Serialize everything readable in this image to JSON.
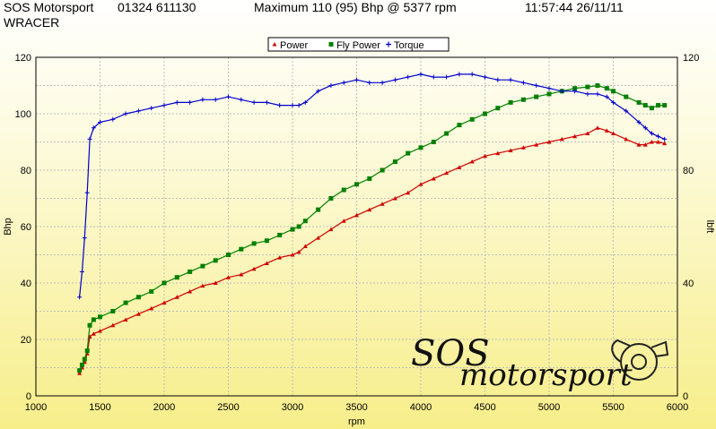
{
  "header": {
    "company": "SOS Motorsport",
    "phone": "01324 611130",
    "maximum": "Maximum 110 (95) Bhp @ 5377 rpm",
    "timestamp": "11:57:44 26/11/11",
    "vehicle": "WRACER"
  },
  "logo": {
    "line1": "SOS",
    "line2": "motorsport"
  },
  "colors": {
    "power": "#d00000",
    "fly_power": "#008000",
    "torque": "#0000cc"
  },
  "chart_data": {
    "type": "line",
    "xlabel": "rpm",
    "ylabel": "Bhp",
    "y2label": "lbft",
    "xlim": [
      1000,
      6000
    ],
    "ylim": [
      0,
      120
    ],
    "y2lim": [
      0,
      120
    ],
    "grid": true,
    "legend_position": "top-center",
    "x_ticks": [
      "1000",
      "1500",
      "2000",
      "2500",
      "3000",
      "3500",
      "4000",
      "4500",
      "5000",
      "5500",
      "6000"
    ],
    "y_ticks": [
      "0",
      "20",
      "40",
      "60",
      "80",
      "100",
      "120"
    ],
    "y2_ticks": [
      "0",
      "40",
      "80",
      "120"
    ],
    "series": [
      {
        "name": "Power",
        "marker": "^",
        "axis": "left",
        "x": [
          1340,
          1360,
          1380,
          1400,
          1420,
          1450,
          1500,
          1600,
          1700,
          1800,
          1900,
          2000,
          2100,
          2200,
          2300,
          2400,
          2500,
          2600,
          2700,
          2800,
          2900,
          3000,
          3050,
          3100,
          3200,
          3300,
          3400,
          3500,
          3600,
          3700,
          3800,
          3900,
          4000,
          4100,
          4200,
          4300,
          4400,
          4500,
          4600,
          4700,
          4800,
          4900,
          5000,
          5100,
          5200,
          5300,
          5377,
          5450,
          5500,
          5600,
          5700,
          5750,
          5800,
          5850,
          5900
        ],
        "y": [
          8,
          10,
          12,
          15,
          21,
          22,
          23,
          25,
          27,
          29,
          31,
          33,
          35,
          37,
          39,
          40,
          42,
          43,
          45,
          47,
          49,
          50,
          51,
          53,
          56,
          59,
          62,
          64,
          66,
          68,
          70,
          72,
          75,
          77,
          79,
          81,
          83,
          85,
          86,
          87,
          88,
          89,
          90,
          91,
          92,
          93,
          95,
          94,
          93,
          91,
          89,
          89,
          90,
          90,
          89.5
        ]
      },
      {
        "name": "Fly Power",
        "marker": "s",
        "axis": "left",
        "x": [
          1340,
          1360,
          1380,
          1400,
          1420,
          1450,
          1500,
          1600,
          1700,
          1800,
          1900,
          2000,
          2100,
          2200,
          2300,
          2400,
          2500,
          2600,
          2700,
          2800,
          2900,
          3000,
          3050,
          3100,
          3200,
          3300,
          3400,
          3500,
          3600,
          3700,
          3800,
          3900,
          4000,
          4100,
          4200,
          4300,
          4400,
          4500,
          4600,
          4700,
          4800,
          4900,
          5000,
          5100,
          5200,
          5300,
          5377,
          5450,
          5500,
          5600,
          5700,
          5750,
          5800,
          5850,
          5900
        ],
        "y": [
          9,
          11,
          13,
          16,
          25,
          27,
          28,
          30,
          33,
          35,
          37,
          40,
          42,
          44,
          46,
          48,
          50,
          52,
          54,
          55,
          57,
          59,
          60,
          62,
          66,
          70,
          73,
          75,
          77,
          80,
          83,
          86,
          88,
          90,
          93,
          96,
          98,
          100,
          102,
          104,
          105,
          106,
          107,
          108,
          109,
          109.5,
          110,
          109,
          108,
          106,
          104,
          103,
          102,
          103,
          103
        ]
      },
      {
        "name": "Torque",
        "marker": "+",
        "axis": "right",
        "x": [
          1340,
          1360,
          1380,
          1400,
          1420,
          1450,
          1500,
          1600,
          1700,
          1800,
          1900,
          2000,
          2100,
          2200,
          2300,
          2400,
          2500,
          2600,
          2700,
          2800,
          2900,
          3000,
          3050,
          3100,
          3200,
          3300,
          3400,
          3500,
          3600,
          3700,
          3800,
          3900,
          4000,
          4100,
          4200,
          4300,
          4400,
          4500,
          4600,
          4700,
          4800,
          4900,
          5000,
          5100,
          5200,
          5300,
          5377,
          5450,
          5500,
          5600,
          5700,
          5750,
          5800,
          5850,
          5900
        ],
        "y": [
          35,
          44,
          56,
          72,
          91,
          95,
          97,
          98,
          100,
          101,
          102,
          103,
          104,
          104,
          105,
          105,
          106,
          105,
          104,
          104,
          103,
          103,
          103,
          104,
          108,
          110,
          111,
          112,
          111,
          111,
          112,
          113,
          114,
          113,
          113,
          114,
          114,
          113,
          112,
          112,
          111,
          110,
          109,
          108,
          108,
          107,
          107,
          106,
          104,
          101,
          97,
          95,
          93,
          92,
          91
        ]
      }
    ]
  }
}
